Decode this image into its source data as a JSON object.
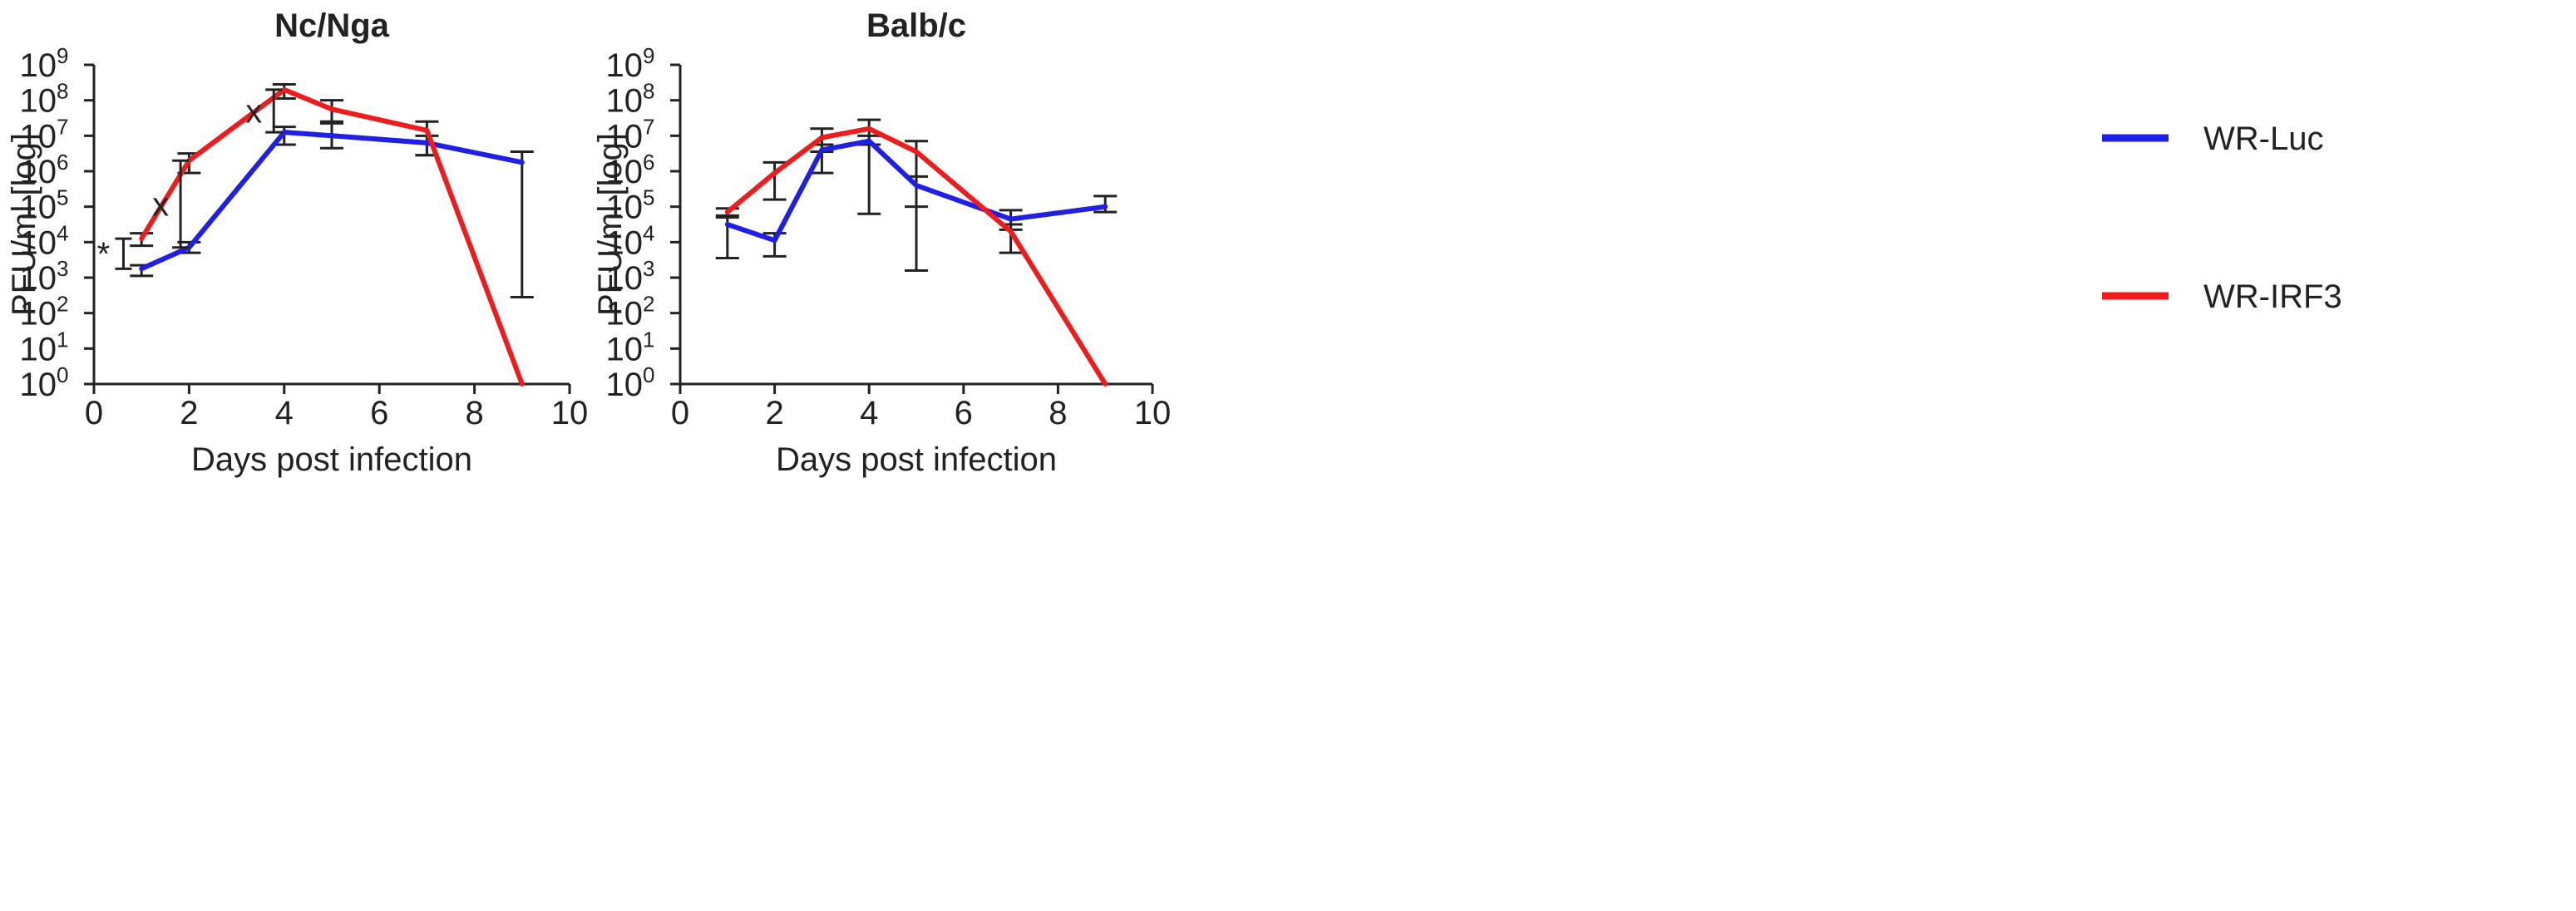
{
  "legend": [
    {
      "name": "WR-Luc",
      "color": "#1f1fe6"
    },
    {
      "name": "WR-IRF3",
      "color": "#ee1c1c"
    }
  ],
  "chart_data": [
    {
      "type": "line",
      "title": "Nc/Nga",
      "xlabel": "Days post infection",
      "ylabel": "PFU/ml [log]",
      "xlim": [
        0,
        10
      ],
      "xticks": [
        "0",
        "2",
        "4",
        "6",
        "8",
        "10"
      ],
      "ylim_log10": [
        0,
        9
      ],
      "yticks": [
        {
          "base": "10",
          "exp": "0"
        },
        {
          "base": "10",
          "exp": "1"
        },
        {
          "base": "10",
          "exp": "2"
        },
        {
          "base": "10",
          "exp": "3"
        },
        {
          "base": "10",
          "exp": "4"
        },
        {
          "base": "10",
          "exp": "5"
        },
        {
          "base": "10",
          "exp": "6"
        },
        {
          "base": "10",
          "exp": "7"
        },
        {
          "base": "10",
          "exp": "8"
        },
        {
          "base": "10",
          "exp": "9"
        }
      ],
      "series": [
        {
          "name": "WR-Luc",
          "color": "#1f1fe6",
          "x": [
            1,
            2,
            4,
            5,
            7,
            9
          ],
          "log10_y": [
            3.25,
            3.85,
            7.1,
            7.0,
            6.8,
            6.25
          ],
          "err_lo": [
            3.05,
            3.7,
            6.75,
            6.65,
            6.45,
            2.45
          ],
          "err_hi": [
            3.35,
            4.0,
            7.25,
            7.4,
            7.0,
            6.55
          ]
        },
        {
          "name": "WR-IRF3",
          "color": "#ee1c1c",
          "x": [
            1,
            2,
            4,
            5,
            7,
            9
          ],
          "log10_y": [
            4.1,
            6.3,
            8.3,
            7.75,
            7.15,
            0
          ],
          "err_lo": [
            3.9,
            5.95,
            8.05,
            7.35,
            6.45,
            null
          ],
          "err_hi": [
            4.25,
            6.5,
            8.45,
            8.0,
            7.4,
            null
          ]
        }
      ],
      "annotations": [
        {
          "text": "*",
          "x": 0.62,
          "log10_lo": 3.25,
          "log10_hi": 4.1
        },
        {
          "text": "x",
          "x": 1.82,
          "log10_lo": 3.85,
          "log10_hi": 6.3
        },
        {
          "text": "x",
          "x": 3.78,
          "log10_lo": 7.1,
          "log10_hi": 8.3
        }
      ]
    },
    {
      "type": "line",
      "title": "Balb/c",
      "xlabel": "Days post infection",
      "ylabel": "PFU/ml [log]",
      "xlim": [
        0,
        10
      ],
      "xticks": [
        "0",
        "2",
        "4",
        "6",
        "8",
        "10"
      ],
      "ylim_log10": [
        0,
        9
      ],
      "yticks": [
        {
          "base": "10",
          "exp": "0"
        },
        {
          "base": "10",
          "exp": "1"
        },
        {
          "base": "10",
          "exp": "2"
        },
        {
          "base": "10",
          "exp": "3"
        },
        {
          "base": "10",
          "exp": "4"
        },
        {
          "base": "10",
          "exp": "5"
        },
        {
          "base": "10",
          "exp": "6"
        },
        {
          "base": "10",
          "exp": "7"
        },
        {
          "base": "10",
          "exp": "8"
        },
        {
          "base": "10",
          "exp": "9"
        }
      ],
      "series": [
        {
          "name": "WR-Luc",
          "color": "#1f1fe6",
          "x": [
            1,
            2,
            3,
            4,
            5,
            7,
            9
          ],
          "log10_y": [
            4.5,
            4.05,
            6.6,
            6.85,
            5.6,
            4.65,
            5.0
          ],
          "err_lo": [
            3.55,
            3.6,
            5.95,
            4.8,
            3.2,
            4.35,
            4.85
          ],
          "err_hi": [
            4.75,
            4.25,
            6.75,
            7.0,
            5.85,
            4.9,
            5.3
          ]
        },
        {
          "name": "WR-IRF3",
          "color": "#ee1c1c",
          "x": [
            1,
            2,
            3,
            4,
            5,
            7,
            9
          ],
          "log10_y": [
            4.85,
            5.95,
            6.95,
            7.2,
            6.55,
            4.3,
            0
          ],
          "err_lo": [
            4.7,
            5.2,
            6.55,
            6.75,
            5.0,
            3.7,
            null
          ],
          "err_hi": [
            4.95,
            6.25,
            7.2,
            7.45,
            6.85,
            4.5,
            null
          ]
        }
      ],
      "annotations": []
    }
  ]
}
